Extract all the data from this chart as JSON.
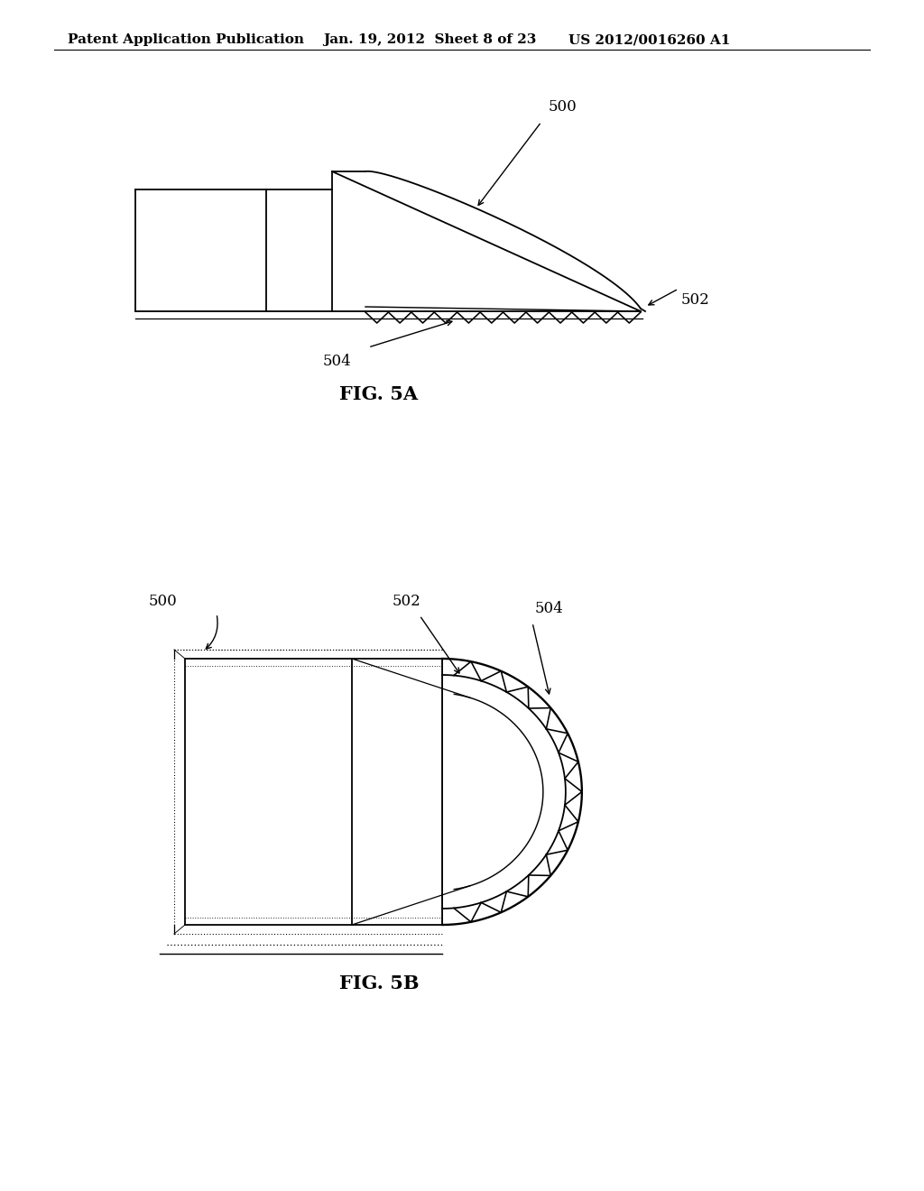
{
  "background_color": "#ffffff",
  "header_left": "Patent Application Publication",
  "header_center": "Jan. 19, 2012  Sheet 8 of 23",
  "header_right": "US 2012/0016260 A1",
  "header_fontsize": 11,
  "fig5a_label": "FIG. 5A",
  "fig5b_label": "FIG. 5B",
  "label_500a": "500",
  "label_502a": "502",
  "label_504a": "504",
  "label_500b": "500",
  "label_502b": "502",
  "label_504b": "504",
  "line_color": "#000000",
  "line_width": 1.3
}
